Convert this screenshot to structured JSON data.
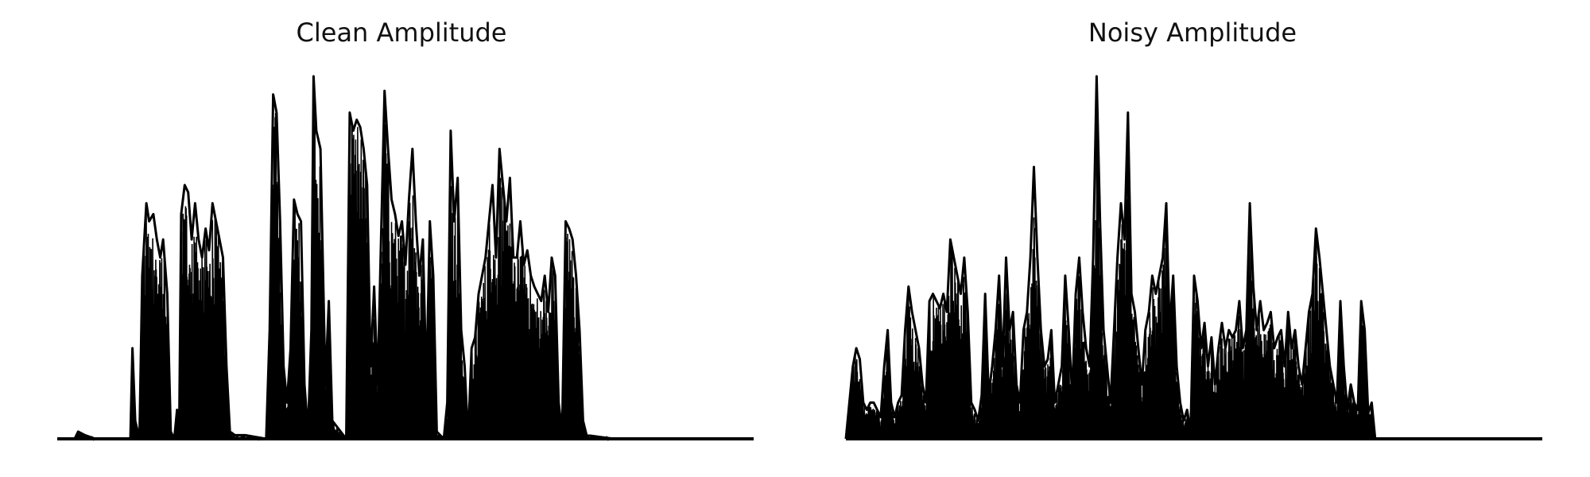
{
  "chart_data": [
    {
      "type": "line",
      "title": "Clean Amplitude",
      "xlabel": "",
      "ylabel": "",
      "axes_visible": false,
      "grid": false,
      "x_range": [
        0,
        1000
      ],
      "ylim": [
        0,
        1.0
      ],
      "color": "#000000",
      "envelope": [
        [
          0,
          0.0
        ],
        [
          25,
          0.0
        ],
        [
          30,
          0.02
        ],
        [
          40,
          0.01
        ],
        [
          55,
          0.0
        ],
        [
          105,
          0.0
        ],
        [
          108,
          0.25
        ],
        [
          112,
          0.05
        ],
        [
          118,
          0.0
        ],
        [
          122,
          0.45
        ],
        [
          128,
          0.65
        ],
        [
          132,
          0.6
        ],
        [
          138,
          0.62
        ],
        [
          143,
          0.55
        ],
        [
          148,
          0.5
        ],
        [
          152,
          0.55
        ],
        [
          158,
          0.4
        ],
        [
          163,
          0.02
        ],
        [
          168,
          0.0
        ],
        [
          172,
          0.08
        ],
        [
          175,
          0.0
        ],
        [
          178,
          0.62
        ],
        [
          183,
          0.7
        ],
        [
          188,
          0.68
        ],
        [
          193,
          0.55
        ],
        [
          198,
          0.65
        ],
        [
          203,
          0.55
        ],
        [
          208,
          0.5
        ],
        [
          213,
          0.58
        ],
        [
          218,
          0.52
        ],
        [
          223,
          0.65
        ],
        [
          228,
          0.6
        ],
        [
          233,
          0.55
        ],
        [
          238,
          0.5
        ],
        [
          243,
          0.2
        ],
        [
          248,
          0.02
        ],
        [
          255,
          0.01
        ],
        [
          270,
          0.01
        ],
        [
          300,
          0.0
        ],
        [
          305,
          0.3
        ],
        [
          310,
          0.95
        ],
        [
          315,
          0.9
        ],
        [
          320,
          0.6
        ],
        [
          325,
          0.2
        ],
        [
          330,
          0.1
        ],
        [
          335,
          0.25
        ],
        [
          340,
          0.66
        ],
        [
          345,
          0.62
        ],
        [
          350,
          0.6
        ],
        [
          355,
          0.15
        ],
        [
          360,
          0.02
        ],
        [
          365,
          0.3
        ],
        [
          368,
          1.0
        ],
        [
          372,
          0.85
        ],
        [
          378,
          0.8
        ],
        [
          385,
          0.15
        ],
        [
          390,
          0.38
        ],
        [
          395,
          0.05
        ],
        [
          415,
          0.0
        ],
        [
          420,
          0.9
        ],
        [
          425,
          0.85
        ],
        [
          430,
          0.88
        ],
        [
          435,
          0.86
        ],
        [
          440,
          0.8
        ],
        [
          445,
          0.7
        ],
        [
          450,
          0.2
        ],
        [
          455,
          0.42
        ],
        [
          460,
          0.15
        ],
        [
          465,
          0.55
        ],
        [
          470,
          0.96
        ],
        [
          475,
          0.8
        ],
        [
          480,
          0.66
        ],
        [
          485,
          0.62
        ],
        [
          490,
          0.56
        ],
        [
          495,
          0.6
        ],
        [
          500,
          0.48
        ],
        [
          505,
          0.66
        ],
        [
          510,
          0.8
        ],
        [
          515,
          0.6
        ],
        [
          520,
          0.45
        ],
        [
          525,
          0.55
        ],
        [
          530,
          0.15
        ],
        [
          535,
          0.6
        ],
        [
          540,
          0.45
        ],
        [
          545,
          0.02
        ],
        [
          555,
          0.0
        ],
        [
          560,
          0.1
        ],
        [
          565,
          0.85
        ],
        [
          570,
          0.6
        ],
        [
          575,
          0.72
        ],
        [
          580,
          0.3
        ],
        [
          585,
          0.2
        ],
        [
          590,
          0.0
        ],
        [
          595,
          0.25
        ],
        [
          600,
          0.28
        ],
        [
          605,
          0.4
        ],
        [
          610,
          0.45
        ],
        [
          615,
          0.5
        ],
        [
          620,
          0.6
        ],
        [
          625,
          0.7
        ],
        [
          630,
          0.5
        ],
        [
          635,
          0.8
        ],
        [
          640,
          0.7
        ],
        [
          645,
          0.6
        ],
        [
          650,
          0.72
        ],
        [
          655,
          0.5
        ],
        [
          660,
          0.5
        ],
        [
          665,
          0.6
        ],
        [
          670,
          0.48
        ],
        [
          675,
          0.52
        ],
        [
          680,
          0.45
        ],
        [
          685,
          0.42
        ],
        [
          690,
          0.4
        ],
        [
          695,
          0.38
        ],
        [
          700,
          0.45
        ],
        [
          705,
          0.35
        ],
        [
          710,
          0.5
        ],
        [
          715,
          0.45
        ],
        [
          720,
          0.1
        ],
        [
          725,
          0.02
        ],
        [
          730,
          0.6
        ],
        [
          735,
          0.58
        ],
        [
          740,
          0.55
        ],
        [
          745,
          0.45
        ],
        [
          750,
          0.3
        ],
        [
          755,
          0.05
        ],
        [
          760,
          0.01
        ],
        [
          800,
          0.0
        ],
        [
          1000,
          0.0
        ]
      ]
    },
    {
      "type": "line",
      "title": "Noisy Amplitude",
      "xlabel": "",
      "ylabel": "",
      "axes_visible": false,
      "grid": false,
      "x_range": [
        0,
        1000
      ],
      "ylim": [
        0,
        1.0
      ],
      "color": "#000000",
      "envelope": [
        [
          0,
          0.0
        ],
        [
          10,
          0.2
        ],
        [
          15,
          0.25
        ],
        [
          20,
          0.22
        ],
        [
          25,
          0.1
        ],
        [
          30,
          0.08
        ],
        [
          35,
          0.1
        ],
        [
          40,
          0.1
        ],
        [
          45,
          0.08
        ],
        [
          50,
          0.06
        ],
        [
          55,
          0.2
        ],
        [
          60,
          0.3
        ],
        [
          65,
          0.1
        ],
        [
          70,
          0.06
        ],
        [
          75,
          0.1
        ],
        [
          80,
          0.12
        ],
        [
          85,
          0.3
        ],
        [
          90,
          0.42
        ],
        [
          95,
          0.35
        ],
        [
          100,
          0.3
        ],
        [
          105,
          0.25
        ],
        [
          110,
          0.15
        ],
        [
          115,
          0.1
        ],
        [
          120,
          0.38
        ],
        [
          125,
          0.4
        ],
        [
          130,
          0.38
        ],
        [
          135,
          0.36
        ],
        [
          140,
          0.4
        ],
        [
          145,
          0.35
        ],
        [
          150,
          0.55
        ],
        [
          155,
          0.5
        ],
        [
          160,
          0.45
        ],
        [
          165,
          0.4
        ],
        [
          170,
          0.5
        ],
        [
          175,
          0.35
        ],
        [
          180,
          0.1
        ],
        [
          185,
          0.08
        ],
        [
          190,
          0.05
        ],
        [
          195,
          0.12
        ],
        [
          200,
          0.4
        ],
        [
          205,
          0.12
        ],
        [
          210,
          0.2
        ],
        [
          215,
          0.3
        ],
        [
          220,
          0.45
        ],
        [
          225,
          0.2
        ],
        [
          230,
          0.5
        ],
        [
          235,
          0.3
        ],
        [
          240,
          0.35
        ],
        [
          245,
          0.15
        ],
        [
          250,
          0.1
        ],
        [
          255,
          0.3
        ],
        [
          260,
          0.35
        ],
        [
          265,
          0.5
        ],
        [
          270,
          0.75
        ],
        [
          275,
          0.5
        ],
        [
          280,
          0.3
        ],
        [
          285,
          0.2
        ],
        [
          290,
          0.22
        ],
        [
          295,
          0.3
        ],
        [
          300,
          0.1
        ],
        [
          305,
          0.15
        ],
        [
          310,
          0.2
        ],
        [
          315,
          0.45
        ],
        [
          320,
          0.3
        ],
        [
          325,
          0.12
        ],
        [
          330,
          0.4
        ],
        [
          335,
          0.5
        ],
        [
          340,
          0.35
        ],
        [
          345,
          0.25
        ],
        [
          350,
          0.2
        ],
        [
          355,
          0.5
        ],
        [
          360,
          1.0
        ],
        [
          365,
          0.6
        ],
        [
          370,
          0.3
        ],
        [
          375,
          0.2
        ],
        [
          380,
          0.1
        ],
        [
          385,
          0.3
        ],
        [
          390,
          0.5
        ],
        [
          395,
          0.65
        ],
        [
          400,
          0.55
        ],
        [
          405,
          0.9
        ],
        [
          410,
          0.4
        ],
        [
          415,
          0.35
        ],
        [
          420,
          0.25
        ],
        [
          425,
          0.15
        ],
        [
          430,
          0.3
        ],
        [
          435,
          0.35
        ],
        [
          440,
          0.45
        ],
        [
          445,
          0.4
        ],
        [
          450,
          0.45
        ],
        [
          455,
          0.5
        ],
        [
          460,
          0.65
        ],
        [
          465,
          0.3
        ],
        [
          470,
          0.45
        ],
        [
          475,
          0.2
        ],
        [
          480,
          0.1
        ],
        [
          485,
          0.05
        ],
        [
          490,
          0.08
        ],
        [
          495,
          0.02
        ],
        [
          500,
          0.45
        ],
        [
          505,
          0.38
        ],
        [
          510,
          0.25
        ],
        [
          515,
          0.32
        ],
        [
          520,
          0.2
        ],
        [
          525,
          0.28
        ],
        [
          530,
          0.15
        ],
        [
          535,
          0.25
        ],
        [
          540,
          0.32
        ],
        [
          545,
          0.25
        ],
        [
          550,
          0.3
        ],
        [
          555,
          0.28
        ],
        [
          560,
          0.3
        ],
        [
          565,
          0.38
        ],
        [
          570,
          0.25
        ],
        [
          575,
          0.3
        ],
        [
          580,
          0.65
        ],
        [
          585,
          0.42
        ],
        [
          590,
          0.3
        ],
        [
          595,
          0.38
        ],
        [
          600,
          0.3
        ],
        [
          605,
          0.32
        ],
        [
          610,
          0.35
        ],
        [
          615,
          0.25
        ],
        [
          620,
          0.28
        ],
        [
          625,
          0.3
        ],
        [
          630,
          0.2
        ],
        [
          635,
          0.35
        ],
        [
          640,
          0.25
        ],
        [
          645,
          0.3
        ],
        [
          650,
          0.2
        ],
        [
          655,
          0.15
        ],
        [
          660,
          0.25
        ],
        [
          665,
          0.35
        ],
        [
          670,
          0.4
        ],
        [
          675,
          0.58
        ],
        [
          680,
          0.5
        ],
        [
          685,
          0.4
        ],
        [
          690,
          0.3
        ],
        [
          695,
          0.2
        ],
        [
          700,
          0.15
        ],
        [
          705,
          0.1
        ],
        [
          710,
          0.38
        ],
        [
          715,
          0.2
        ],
        [
          720,
          0.08
        ],
        [
          725,
          0.15
        ],
        [
          730,
          0.1
        ],
        [
          735,
          0.08
        ],
        [
          740,
          0.38
        ],
        [
          745,
          0.3
        ],
        [
          750,
          0.07
        ],
        [
          755,
          0.1
        ],
        [
          760,
          0.0
        ],
        [
          1000,
          0.0
        ]
      ]
    }
  ]
}
